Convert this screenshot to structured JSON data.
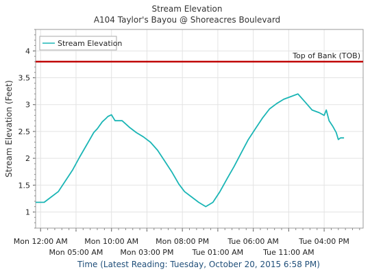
{
  "chart_data": {
    "type": "line",
    "title": "Stream Elevation",
    "subtitle": "A104 Taylor's Bayou @ Shoreacres Boulevard",
    "ylabel": "Stream Elevation (Feet)",
    "xlabel": "Time (Latest Reading: Tuesday, October 20, 2015 6:58 PM)",
    "ylim": [
      0.7,
      4.4
    ],
    "yticks": [
      1,
      1.5,
      2,
      2.5,
      3,
      3.5,
      4
    ],
    "xlim": [
      -0.7,
      45.5
    ],
    "xticks": [
      {
        "x": 0,
        "label": "Mon 12:00 AM"
      },
      {
        "x": 5,
        "label": "Mon 05:00 AM"
      },
      {
        "x": 10,
        "label": "Mon 10:00 AM"
      },
      {
        "x": 15,
        "label": "Mon 03:00 PM"
      },
      {
        "x": 20,
        "label": "Mon 08:00 PM"
      },
      {
        "x": 25,
        "label": "Tue 01:00 AM"
      },
      {
        "x": 30,
        "label": "Tue 06:00 AM"
      },
      {
        "x": 35,
        "label": "Tue 11:00 AM"
      },
      {
        "x": 40,
        "label": "Tue 04:00 PM"
      }
    ],
    "grid": true,
    "legend": {
      "position": "top-left",
      "entries": [
        "Stream Elevation"
      ]
    },
    "reference_line": {
      "label": "Top of Bank (TOB)",
      "value": 3.8,
      "color": "#c00000"
    },
    "series": [
      {
        "name": "Stream Elevation",
        "color": "#1ab5b5",
        "x": [
          -0.7,
          0.5,
          1.5,
          2.5,
          3.5,
          4.5,
          5.5,
          6.5,
          7.5,
          8.0,
          8.7,
          9.2,
          9.5,
          10.0,
          10.5,
          11.5,
          12.5,
          13.5,
          14.5,
          15.5,
          16.5,
          17.5,
          18.5,
          19.5,
          20.3,
          21.3,
          22.3,
          23.3,
          24.3,
          25.3,
          26.3,
          27.3,
          28.3,
          29.3,
          30.3,
          31.3,
          32.3,
          33.3,
          34.3,
          35.3,
          36.3,
          37.3,
          38.3,
          39.3,
          40.0,
          40.3,
          40.7,
          41.2,
          41.7,
          42.0,
          42.3,
          42.8
        ],
        "y": [
          1.18,
          1.18,
          1.28,
          1.38,
          1.58,
          1.78,
          2.02,
          2.25,
          2.48,
          2.55,
          2.68,
          2.74,
          2.78,
          2.81,
          2.7,
          2.7,
          2.58,
          2.48,
          2.4,
          2.3,
          2.15,
          1.95,
          1.75,
          1.52,
          1.38,
          1.28,
          1.18,
          1.1,
          1.18,
          1.38,
          1.62,
          1.85,
          2.1,
          2.35,
          2.55,
          2.75,
          2.92,
          3.02,
          3.1,
          3.15,
          3.2,
          3.05,
          2.9,
          2.85,
          2.8,
          2.9,
          2.7,
          2.6,
          2.48,
          2.35,
          2.38,
          2.38
        ]
      }
    ]
  }
}
